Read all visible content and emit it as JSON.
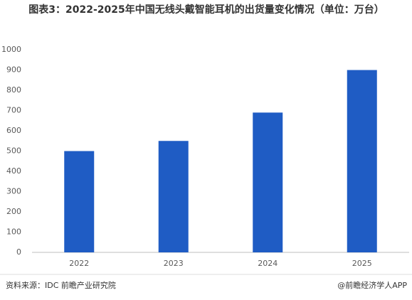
{
  "chart_data": {
    "type": "bar",
    "title": "图表3：2022-2025年中国无线头戴智能耳机的出货量变化情况（单位：万台）",
    "categories": [
      "2022",
      "2023",
      "2024",
      "2025"
    ],
    "values": [
      500,
      550,
      690,
      900
    ],
    "color": "#1f5cc4",
    "ylim": [
      0,
      1000
    ],
    "yticks": [
      0,
      100,
      200,
      300,
      400,
      500,
      600,
      700,
      800,
      900,
      1000
    ],
    "grid": false,
    "source": "资料来源：IDC 前瞻产业研究院",
    "credit": "@前瞻经济学人APP"
  }
}
